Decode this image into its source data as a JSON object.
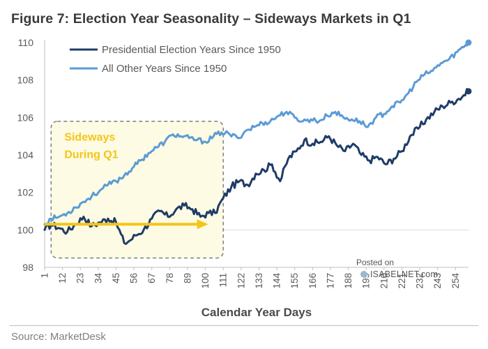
{
  "header": {
    "title": "Figure 7: Election Year Seasonality – Sideways Markets in Q1"
  },
  "footer": {
    "source": "Source: MarketDesk"
  },
  "watermark": {
    "posted_on": "Posted on",
    "brand": "ISABELNET.com"
  },
  "chart_data": {
    "type": "line",
    "title": "Figure 7: Election Year Seasonality – Sideways Markets in Q1",
    "xlabel": "Calendar Year Days",
    "ylabel": "",
    "xlim": [
      1,
      262
    ],
    "ylim": [
      98,
      110
    ],
    "yticks": [
      "98",
      "100",
      "102",
      "104",
      "106",
      "108",
      "110"
    ],
    "xticks": [
      "1",
      "12",
      "23",
      "34",
      "45",
      "56",
      "67",
      "78",
      "89",
      "100",
      "111",
      "122",
      "133",
      "144",
      "155",
      "166",
      "177",
      "188",
      "199",
      "210",
      "221",
      "232",
      "243",
      "254"
    ],
    "legend_position": "top-left",
    "colors": {
      "presidential": "#1f3c66",
      "other": "#5b9bd5",
      "annotation": "#f5c518",
      "box_fill": "#fdfbe3"
    },
    "series": [
      {
        "name": "Presidential Election Years Since 1950",
        "x": [
          1,
          5,
          10,
          15,
          20,
          25,
          30,
          35,
          40,
          45,
          50,
          53,
          57,
          62,
          67,
          72,
          77,
          82,
          87,
          92,
          97,
          102,
          106,
          111,
          116,
          121,
          126,
          131,
          136,
          141,
          146,
          151,
          156,
          161,
          166,
          171,
          176,
          181,
          186,
          191,
          196,
          201,
          206,
          211,
          216,
          221,
          226,
          231,
          236,
          241,
          246,
          251,
          256,
          262
        ],
        "values": [
          100.0,
          100.3,
          100.1,
          99.9,
          100.3,
          100.7,
          100.2,
          100.4,
          100.6,
          100.4,
          99.3,
          99.4,
          99.7,
          100.0,
          100.6,
          101.0,
          100.7,
          101.1,
          101.3,
          101.1,
          100.7,
          100.9,
          100.9,
          101.7,
          102.3,
          102.6,
          102.4,
          103.0,
          103.2,
          103.5,
          102.6,
          103.8,
          104.2,
          104.8,
          104.6,
          104.7,
          105.0,
          104.5,
          104.2,
          104.6,
          104.0,
          103.7,
          103.9,
          103.5,
          103.8,
          104.2,
          105.0,
          105.4,
          105.9,
          106.3,
          106.6,
          106.8,
          107.0,
          107.4
        ]
      },
      {
        "name": "All Other Years Since 1950",
        "x": [
          1,
          5,
          10,
          15,
          20,
          25,
          30,
          35,
          40,
          45,
          50,
          55,
          60,
          65,
          70,
          75,
          80,
          85,
          90,
          95,
          100,
          105,
          110,
          115,
          120,
          125,
          130,
          135,
          140,
          145,
          150,
          155,
          160,
          165,
          170,
          175,
          180,
          185,
          190,
          195,
          200,
          205,
          210,
          215,
          220,
          225,
          230,
          235,
          240,
          245,
          250,
          255,
          262
        ],
        "values": [
          100.3,
          100.6,
          100.7,
          100.9,
          101.2,
          101.5,
          101.8,
          102.1,
          102.4,
          102.6,
          102.9,
          103.3,
          103.7,
          104.1,
          104.4,
          104.7,
          105.1,
          105.0,
          104.9,
          104.8,
          104.7,
          105.0,
          105.2,
          105.1,
          104.9,
          105.3,
          105.5,
          105.7,
          105.8,
          106.1,
          106.3,
          106.0,
          105.8,
          105.9,
          105.8,
          106.1,
          106.3,
          106.0,
          105.9,
          105.8,
          105.5,
          106.0,
          106.2,
          106.6,
          106.8,
          107.3,
          107.9,
          108.3,
          108.5,
          108.9,
          109.1,
          109.5,
          110.0
        ]
      }
    ],
    "annotations": [
      {
        "text_line1": "Sideways",
        "text_line2": "During Q1",
        "x_range": [
          5,
          111
        ],
        "y_range": [
          98.5,
          105.8
        ],
        "arrow_y": 100.3
      }
    ]
  }
}
